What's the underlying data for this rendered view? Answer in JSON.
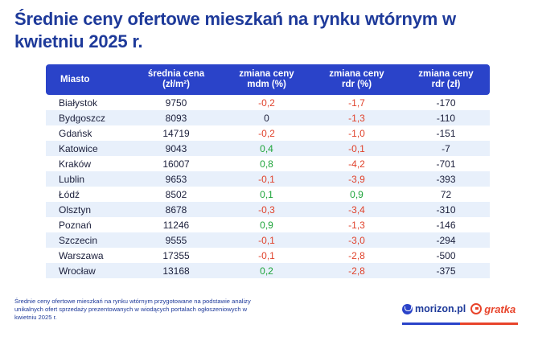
{
  "title": "Średnie ceny ofertowe mieszkań na rynku wtórnym w kwietniu 2025 r.",
  "chart_data": {
    "type": "table",
    "title": "Średnie ceny ofertowe mieszkań na rynku wtórnym w kwietniu 2025 r.",
    "columns": [
      "Miasto",
      "średnia cena (zł/m²)",
      "zmiana ceny mdm (%)",
      "zmiana ceny rdr (%)",
      "zmiana ceny rdr (zł)"
    ],
    "rows": [
      {
        "city": "Białystok",
        "price": "9750",
        "mdm": "-0,2",
        "rdr_pct": "-1,7",
        "rdr_zl": "-170"
      },
      {
        "city": "Bydgoszcz",
        "price": "8093",
        "mdm": "0",
        "rdr_pct": "-1,3",
        "rdr_zl": "-110"
      },
      {
        "city": "Gdańsk",
        "price": "14719",
        "mdm": "-0,2",
        "rdr_pct": "-1,0",
        "rdr_zl": "-151"
      },
      {
        "city": "Katowice",
        "price": "9043",
        "mdm": "0,4",
        "rdr_pct": "-0,1",
        "rdr_zl": "-7"
      },
      {
        "city": "Kraków",
        "price": "16007",
        "mdm": "0,8",
        "rdr_pct": "-4,2",
        "rdr_zl": "-701"
      },
      {
        "city": "Lublin",
        "price": "9653",
        "mdm": "-0,1",
        "rdr_pct": "-3,9",
        "rdr_zl": "-393"
      },
      {
        "city": "Łódź",
        "price": "8502",
        "mdm": "0,1",
        "rdr_pct": "0,9",
        "rdr_zl": "72"
      },
      {
        "city": "Olsztyn",
        "price": "8678",
        "mdm": "-0,3",
        "rdr_pct": "-3,4",
        "rdr_zl": "-310"
      },
      {
        "city": "Poznań",
        "price": "11246",
        "mdm": "0,9",
        "rdr_pct": "-1,3",
        "rdr_zl": "-146"
      },
      {
        "city": "Szczecin",
        "price": "9555",
        "mdm": "-0,1",
        "rdr_pct": "-3,0",
        "rdr_zl": "-294"
      },
      {
        "city": "Warszawa",
        "price": "17355",
        "mdm": "-0,1",
        "rdr_pct": "-2,8",
        "rdr_zl": "-500"
      },
      {
        "city": "Wrocław",
        "price": "13168",
        "mdm": "0,2",
        "rdr_pct": "-2,8",
        "rdr_zl": "-375"
      }
    ]
  },
  "header": {
    "city": "Miasto",
    "price_l1": "średnia cena",
    "price_l2": "(zł/m²)",
    "mdm_l1": "zmiana ceny",
    "mdm_l2": "mdm (%)",
    "rdrp_l1": "zmiana ceny",
    "rdrp_l2": "rdr (%)",
    "rdrz_l1": "zmiana ceny",
    "rdrz_l2": "rdr (zł)"
  },
  "footnote": "Średnie ceny ofertowe mieszkań na rynku wtórnym przygotowane na podstawie analizy unikalnych ofert sprzedaży prezentowanych w wiodących portalach ogłoszeniowych w kwietniu 2025 r.",
  "logos": {
    "morizon": "morizon.pl",
    "gratka": "gratka"
  },
  "colors": {
    "accent": "#2a43c9",
    "title": "#1e3a9a",
    "negative": "#e0422b",
    "positive": "#1ea43a",
    "row_alt": "#e8f0fb",
    "brand_red": "#e8442b"
  }
}
